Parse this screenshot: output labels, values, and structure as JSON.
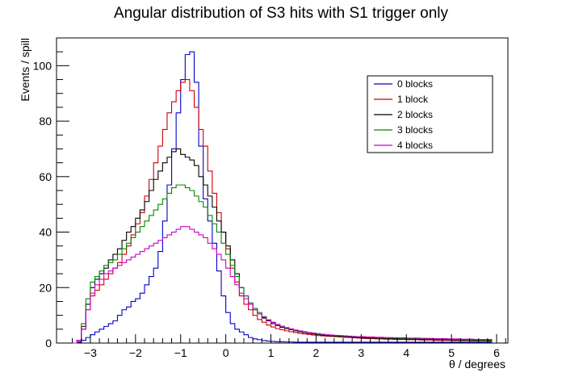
{
  "chart_data": {
    "type": "line",
    "style": "step-histogram",
    "title": "Angular distribution of S3 hits with S1 trigger only",
    "xlabel": "θ / degrees",
    "ylabel": "Events / spill",
    "xlim": [
      -3.75,
      6.25
    ],
    "ylim": [
      0,
      110
    ],
    "xticks": [
      -3,
      -2,
      -1,
      0,
      1,
      2,
      3,
      4,
      5,
      6
    ],
    "xtick_labels": [
      "−3",
      "−2",
      "−1",
      "0",
      "1",
      "2",
      "3",
      "4",
      "5",
      "6"
    ],
    "yticks": [
      0,
      20,
      40,
      60,
      80,
      100
    ],
    "ytick_labels": [
      "0",
      "20",
      "40",
      "60",
      "80",
      "100"
    ],
    "grid": false,
    "legend": "top-right",
    "bin_width": 0.1,
    "x": [
      -3.35,
      -3.25,
      -3.15,
      -3.05,
      -2.95,
      -2.85,
      -2.75,
      -2.65,
      -2.55,
      -2.45,
      -2.35,
      -2.25,
      -2.15,
      -2.05,
      -1.95,
      -1.85,
      -1.75,
      -1.65,
      -1.55,
      -1.45,
      -1.35,
      -1.25,
      -1.15,
      -1.05,
      -0.95,
      -0.85,
      -0.75,
      -0.65,
      -0.55,
      -0.45,
      -0.35,
      -0.25,
      -0.15,
      -0.05,
      0.05,
      0.15,
      0.25,
      0.35,
      0.45,
      0.55,
      0.65,
      0.75,
      0.85,
      0.95,
      1.05,
      1.15,
      1.25,
      1.35,
      1.45,
      1.55,
      1.65,
      1.75,
      1.85,
      1.95,
      2.05,
      2.15,
      2.25,
      2.35,
      2.45,
      2.55,
      2.65,
      2.75,
      2.85,
      2.95,
      3.05,
      3.15,
      3.25,
      3.35,
      3.45,
      3.55,
      3.65,
      3.75,
      3.85,
      3.95,
      4.05,
      4.15,
      4.25,
      4.35,
      4.45,
      4.55,
      4.65,
      4.75,
      4.85,
      4.95,
      5.05,
      5.15,
      5.25,
      5.35,
      5.45,
      5.55,
      5.65,
      5.75,
      5.85
    ],
    "series": [
      {
        "name": "0 blocks",
        "color": "#0000cc",
        "values": [
          0.0,
          0.2,
          1.0,
          2.0,
          3.0,
          4.0,
          5.0,
          6.0,
          7.0,
          8.0,
          10.0,
          12.0,
          13.0,
          15.0,
          16.0,
          18.0,
          21.0,
          24.0,
          27.0,
          33.0,
          44.0,
          57.0,
          70.0,
          83.0,
          95.0,
          104.0,
          105.0,
          94.0,
          71.0,
          52.0,
          44.0,
          36.0,
          26.0,
          17.0,
          11.0,
          7.0,
          5.0,
          4.0,
          3.0,
          2.0,
          1.5,
          1.2,
          0.9,
          0.7,
          0.6,
          0.5,
          0.5,
          0.4,
          0.4,
          0.3,
          0.3,
          0.3,
          0.3,
          0.3,
          0.3,
          0.3,
          0.3,
          0.3,
          0.3,
          0.3,
          0.3,
          0.3,
          0.3,
          0.3,
          0.3,
          0.3,
          0.3,
          0.3,
          0.3,
          0.3,
          0.3,
          0.3,
          0.3,
          0.3,
          0.3,
          0.3,
          0.3,
          0.3,
          0.3,
          0.3,
          0.3,
          0.3,
          0.3,
          0.3,
          0.3,
          0.3,
          0.3,
          0.3,
          0.3,
          0.3,
          0.3,
          0.3,
          0.3
        ]
      },
      {
        "name": "1 block",
        "color": "#cc0000",
        "values": [
          0.0,
          0.5,
          5.0,
          12.0,
          17.0,
          19.0,
          21.0,
          23.0,
          25.0,
          27.0,
          29.0,
          32.0,
          35.0,
          39.0,
          43.0,
          47.0,
          53.0,
          59.0,
          65.0,
          71.0,
          77.0,
          83.0,
          87.0,
          91.0,
          94.0,
          95.0,
          91.0,
          85.0,
          77.0,
          71.0,
          62.0,
          54.0,
          47.0,
          40.0,
          34.0,
          27.0,
          22.0,
          17.0,
          14.0,
          12.0,
          10.0,
          8.5,
          7.5,
          6.5,
          5.8,
          5.2,
          4.8,
          4.4,
          4.1,
          3.8,
          3.5,
          3.3,
          3.1,
          2.9,
          2.7,
          2.6,
          2.5,
          2.4,
          2.3,
          2.2,
          2.1,
          2.0,
          1.9,
          1.8,
          1.7,
          1.6,
          1.6,
          1.5,
          1.5,
          1.4,
          1.4,
          1.3,
          1.3,
          1.3,
          1.2,
          1.2,
          1.2,
          1.1,
          1.1,
          1.1,
          1.0,
          1.0,
          1.0,
          1.0,
          0.9,
          0.9,
          0.9,
          0.9,
          0.8,
          0.8,
          0.8,
          0.8,
          0.7
        ]
      },
      {
        "name": "2 blocks",
        "color": "#000000",
        "values": [
          0.0,
          1.0,
          6.0,
          14.0,
          20.0,
          23.0,
          25.0,
          27.0,
          30.0,
          32.0,
          34.0,
          37.0,
          40.0,
          42.0,
          45.0,
          48.0,
          51.0,
          55.0,
          59.0,
          62.0,
          65.0,
          67.0,
          69.0,
          70.0,
          68.0,
          67.0,
          66.0,
          64.0,
          60.0,
          57.0,
          53.0,
          49.0,
          44.0,
          40.0,
          35.0,
          30.0,
          25.0,
          20.0,
          17.0,
          14.0,
          12.0,
          10.5,
          9.0,
          8.0,
          7.0,
          6.3,
          5.7,
          5.2,
          4.8,
          4.4,
          4.1,
          3.8,
          3.5,
          3.3,
          3.1,
          2.9,
          2.7,
          2.6,
          2.5,
          2.4,
          2.3,
          2.2,
          2.1,
          2.0,
          1.9,
          1.9,
          1.8,
          1.8,
          1.7,
          1.7,
          1.6,
          1.6,
          1.5,
          1.5,
          1.4,
          1.4,
          1.4,
          1.3,
          1.3,
          1.3,
          1.2,
          1.2,
          1.2,
          1.1,
          1.1,
          1.1,
          1.0,
          1.0,
          1.0,
          0.9,
          0.9,
          0.9,
          0.9
        ]
      },
      {
        "name": "3 blocks",
        "color": "#008800",
        "values": [
          0.0,
          1.0,
          7.0,
          16.0,
          22.0,
          24.0,
          26.0,
          28.0,
          29.0,
          30.0,
          32.0,
          34.0,
          36.0,
          38.0,
          40.0,
          42.0,
          44.0,
          46.0,
          48.0,
          50.0,
          52.0,
          54.0,
          56.0,
          57.0,
          57.0,
          56.0,
          55.0,
          53.0,
          51.0,
          49.0,
          46.0,
          43.0,
          40.0,
          36.0,
          32.0,
          28.0,
          24.0,
          20.0,
          17.0,
          14.5,
          12.5,
          11.0,
          9.5,
          8.4,
          7.5,
          6.7,
          6.1,
          5.5,
          5.0,
          4.6,
          4.3,
          4.0,
          3.7,
          3.5,
          3.3,
          3.1,
          2.9,
          2.8,
          2.7,
          2.6,
          2.5,
          2.4,
          2.3,
          2.2,
          2.2,
          2.1,
          2.0,
          2.0,
          1.9,
          1.9,
          1.8,
          1.8,
          1.7,
          1.7,
          1.7,
          1.6,
          1.6,
          1.6,
          1.5,
          1.5,
          1.5,
          1.4,
          1.4,
          1.4,
          1.3,
          1.3,
          1.3,
          1.2,
          1.2,
          1.2,
          1.1,
          1.1,
          1.1
        ]
      },
      {
        "name": "4 blocks",
        "color": "#cc00cc",
        "values": [
          0.0,
          1.0,
          5.0,
          12.0,
          18.0,
          21.0,
          23.0,
          25.0,
          26.0,
          27.0,
          28.0,
          29.0,
          30.0,
          31.0,
          32.0,
          33.0,
          34.0,
          35.0,
          36.0,
          37.0,
          38.0,
          39.0,
          40.0,
          41.0,
          42.0,
          42.0,
          41.0,
          40.0,
          39.0,
          38.0,
          36.0,
          34.0,
          32.0,
          30.0,
          27.0,
          24.0,
          21.0,
          18.0,
          16.0,
          14.0,
          12.0,
          10.5,
          9.3,
          8.3,
          7.4,
          6.7,
          6.1,
          5.6,
          5.1,
          4.7,
          4.4,
          4.1,
          3.8,
          3.6,
          3.4,
          3.2,
          3.0,
          2.9,
          2.8,
          2.7,
          2.6,
          2.5,
          2.4,
          2.3,
          2.3,
          2.2,
          2.2,
          2.1,
          2.1,
          2.0,
          2.0,
          1.9,
          1.9,
          1.9,
          1.8,
          1.8,
          1.8,
          1.7,
          1.7,
          1.7,
          1.6,
          1.6,
          1.6,
          1.5,
          1.5,
          1.5,
          1.4,
          1.4,
          1.4,
          1.3,
          1.3,
          1.3,
          1.3
        ]
      }
    ]
  }
}
